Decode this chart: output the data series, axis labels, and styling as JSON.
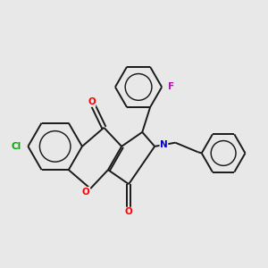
{
  "bg_color": "#e8e8e8",
  "bond_color": "#1a1a1a",
  "atom_colors": {
    "O": "#ff0000",
    "N": "#0000cc",
    "Cl": "#00aa00",
    "F": "#cc00cc"
  },
  "lw": 1.4,
  "fig_size": [
    3.0,
    3.0
  ],
  "dpi": 100
}
